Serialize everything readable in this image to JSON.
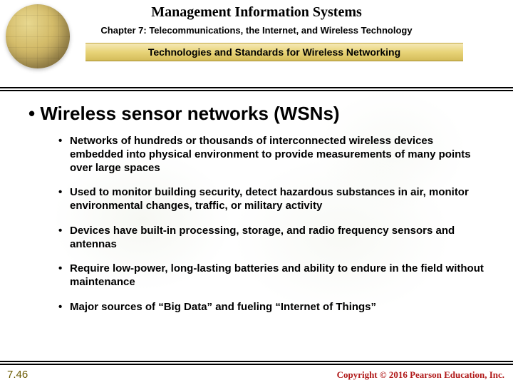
{
  "header": {
    "main_title": "Management Information Systems",
    "chapter": "Chapter 7: Telecommunications, the Internet, and Wireless Technology",
    "subtitle": "Technologies and Standards for Wireless Networking"
  },
  "content": {
    "heading": "Wireless sensor networks (WSNs)",
    "bullets": [
      "Networks of hundreds or thousands of interconnected wireless devices embedded into physical environment to provide measurements of many points over large spaces",
      "Used to monitor building security, detect hazardous substances in air, monitor environmental changes, traffic, or military activity",
      "Devices have built-in processing, storage, and radio frequency sensors and antennas",
      "Require low-power, long-lasting batteries and ability to endure in the field without maintenance",
      "Major sources of “Big Data” and fueling “Internet of Things”"
    ]
  },
  "footer": {
    "slide_number": "7.46",
    "copyright": "Copyright © 2016 Pearson Education, Inc."
  },
  "colors": {
    "gold_bar_top": "#f5e8b8",
    "gold_bar_mid": "#e8d478",
    "gold_bar_bot": "#d4bc5a",
    "slide_num_color": "#6b5a00",
    "copyright_color": "#b01818",
    "rule_color": "#000000"
  }
}
